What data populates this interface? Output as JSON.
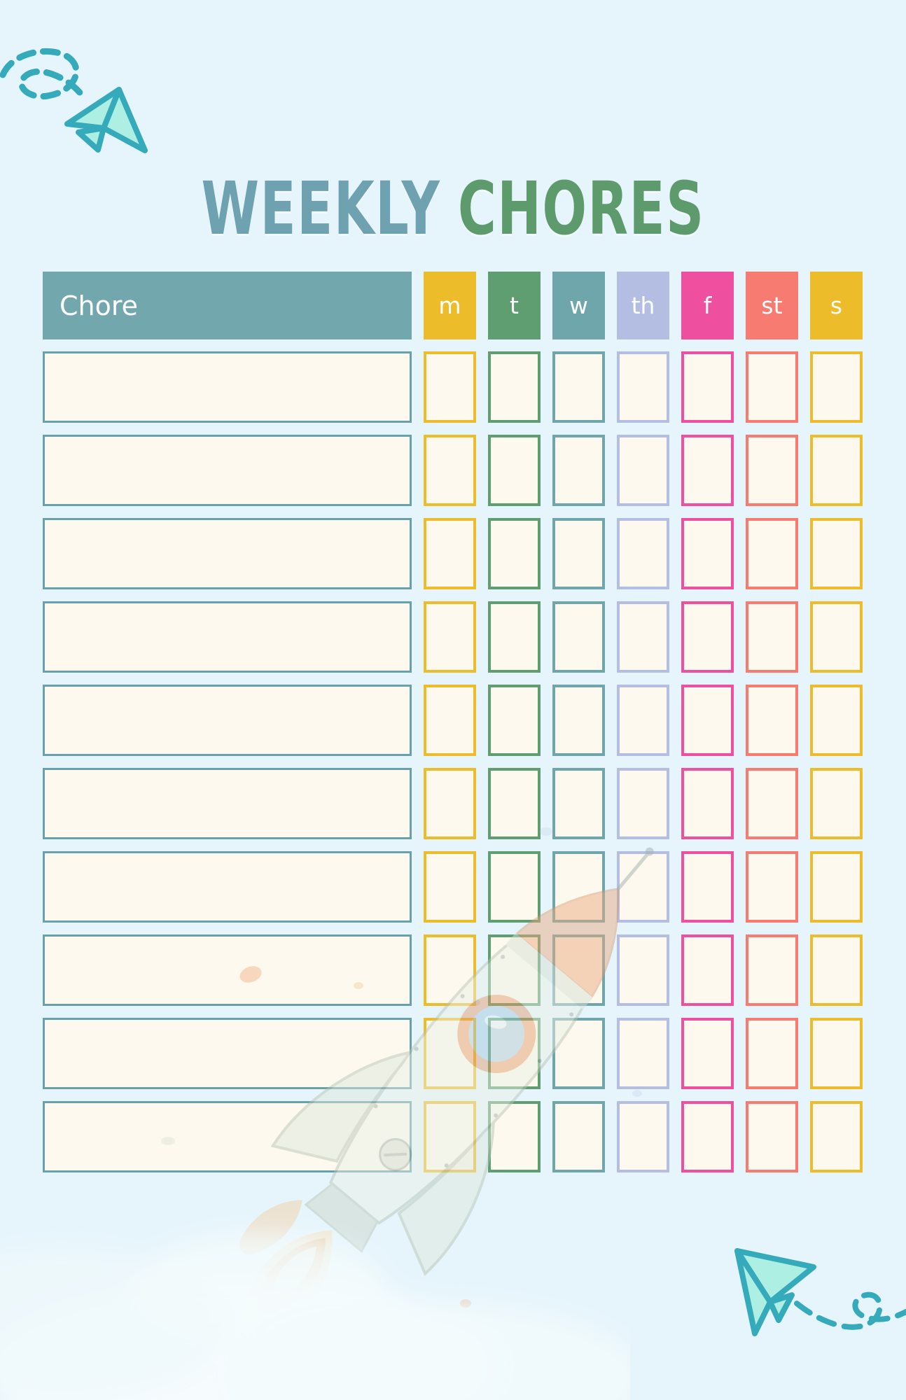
{
  "title": {
    "weekly": "WEEKLY",
    "chores": "CHORES"
  },
  "table": {
    "chore_header": "Chore",
    "days": [
      {
        "label": "m",
        "color": "#edbc2b"
      },
      {
        "label": "t",
        "color": "#5f9e71"
      },
      {
        "label": "w",
        "color": "#6fa6ac"
      },
      {
        "label": "th",
        "color": "#b4bee3"
      },
      {
        "label": "f",
        "color": "#ee4f9f"
      },
      {
        "label": "st",
        "color": "#f87b71"
      },
      {
        "label": "s",
        "color": "#edbc2b"
      }
    ],
    "rows": [
      "",
      "",
      "",
      "",
      "",
      "",
      "",
      "",
      "",
      ""
    ]
  },
  "colors": {
    "background": "#e6f5fc",
    "chore_header_bg": "#72a7ad",
    "chore_box_border": "#68a1a9",
    "box_fill": "#fdf9ef",
    "title_weekly": "#6fa2b1",
    "title_chores": "#5d9b6d",
    "plane_stroke": "#35aabb",
    "plane_fill": "#adefe2"
  },
  "decorations": {
    "top_left": "paper-plane-icon with dashed loop trail",
    "bottom_right": "paper-plane-icon with dashed loop trail",
    "overlay": "watercolor rocket illustration, semi-transparent",
    "bottom": "watercolor clouds"
  }
}
